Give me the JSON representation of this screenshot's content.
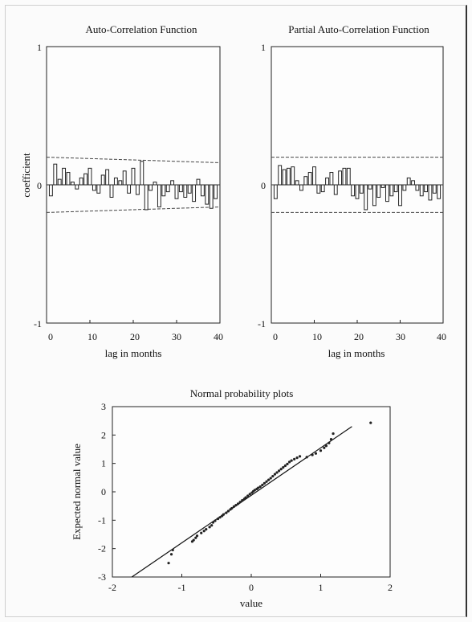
{
  "chart_data": [
    {
      "type": "bar",
      "title": "Auto-Correlation Function",
      "xlabel": "lag in months",
      "ylabel": "coefficient",
      "xlim": [
        0,
        40
      ],
      "ylim": [
        -1,
        1
      ],
      "x_ticks": [
        "0",
        "10",
        "20",
        "30",
        "40"
      ],
      "y_ticks": [
        "1",
        "0",
        "-1"
      ],
      "lags": [
        1,
        2,
        3,
        4,
        5,
        6,
        7,
        8,
        9,
        10,
        11,
        12,
        13,
        14,
        15,
        16,
        17,
        18,
        19,
        20,
        21,
        22,
        23,
        24,
        25,
        26,
        27,
        28,
        29,
        30,
        31,
        32,
        33,
        34,
        35,
        36,
        37,
        38,
        39
      ],
      "values": [
        -0.08,
        0.15,
        0.04,
        0.12,
        0.09,
        0.02,
        -0.03,
        0.05,
        0.08,
        0.12,
        -0.04,
        -0.06,
        0.07,
        0.11,
        -0.09,
        0.05,
        0.03,
        0.1,
        -0.06,
        0.12,
        -0.07,
        0.17,
        -0.18,
        -0.04,
        0.02,
        -0.16,
        -0.08,
        -0.05,
        0.03,
        -0.1,
        -0.05,
        -0.09,
        -0.06,
        -0.12,
        0.04,
        -0.08,
        -0.14,
        -0.17,
        -0.1
      ],
      "confidence_band": {
        "start": [
          0.2,
          -0.2
        ],
        "end": [
          0.16,
          -0.16
        ]
      }
    },
    {
      "type": "bar",
      "title": "Partial Auto-Correlation Function",
      "xlabel": "lag in months",
      "ylabel": "",
      "xlim": [
        0,
        40
      ],
      "ylim": [
        -1,
        1
      ],
      "x_ticks": [
        "0",
        "10",
        "20",
        "30",
        "40"
      ],
      "y_ticks": [
        "1",
        "0",
        "-1"
      ],
      "lags": [
        1,
        2,
        3,
        4,
        5,
        6,
        7,
        8,
        9,
        10,
        11,
        12,
        13,
        14,
        15,
        16,
        17,
        18,
        19,
        20,
        21,
        22,
        23,
        24,
        25,
        26,
        27,
        28,
        29,
        30,
        31,
        32,
        33,
        34,
        35,
        36,
        37,
        38,
        39
      ],
      "values": [
        -0.1,
        0.14,
        0.11,
        0.12,
        0.13,
        0.03,
        -0.04,
        0.06,
        0.09,
        0.13,
        -0.06,
        -0.05,
        0.05,
        0.09,
        -0.07,
        0.1,
        0.12,
        0.12,
        -0.08,
        -0.1,
        -0.06,
        -0.18,
        -0.03,
        -0.15,
        -0.09,
        -0.02,
        -0.12,
        -0.08,
        -0.05,
        -0.15,
        -0.04,
        0.05,
        0.03,
        -0.04,
        -0.08,
        -0.05,
        -0.11,
        -0.06,
        -0.1
      ],
      "confidence_band": {
        "start": [
          0.2,
          -0.2
        ],
        "end": [
          0.2,
          -0.2
        ]
      }
    },
    {
      "type": "scatter",
      "title": "Normal probability plots",
      "xlabel": "value",
      "ylabel": "Expected normal value",
      "xlim": [
        -2,
        2
      ],
      "ylim": [
        -3,
        3
      ],
      "x_ticks": [
        "-2",
        "-1",
        "0",
        "1",
        "2"
      ],
      "y_ticks": [
        "3",
        "2",
        "1",
        "0",
        "-1",
        "-2",
        "-3"
      ],
      "reference_line": [
        [
          -1.72,
          -3.0
        ],
        [
          1.45,
          2.3
        ]
      ],
      "points": [
        [
          -1.19,
          -2.51
        ],
        [
          -1.15,
          -2.2
        ],
        [
          -1.13,
          -2.05
        ],
        [
          -0.85,
          -1.75
        ],
        [
          -0.83,
          -1.7
        ],
        [
          -0.8,
          -1.62
        ],
        [
          -0.78,
          -1.55
        ],
        [
          -0.72,
          -1.45
        ],
        [
          -0.68,
          -1.38
        ],
        [
          -0.65,
          -1.32
        ],
        [
          -0.6,
          -1.24
        ],
        [
          -0.57,
          -1.18
        ],
        [
          -0.55,
          -1.08
        ],
        [
          -0.52,
          -1.02
        ],
        [
          -0.48,
          -0.95
        ],
        [
          -0.45,
          -0.9
        ],
        [
          -0.42,
          -0.85
        ],
        [
          -0.4,
          -0.8
        ],
        [
          -0.36,
          -0.74
        ],
        [
          -0.33,
          -0.68
        ],
        [
          -0.3,
          -0.62
        ],
        [
          -0.28,
          -0.58
        ],
        [
          -0.25,
          -0.52
        ],
        [
          -0.22,
          -0.47
        ],
        [
          -0.19,
          -0.42
        ],
        [
          -0.16,
          -0.36
        ],
        [
          -0.13,
          -0.3
        ],
        [
          -0.1,
          -0.25
        ],
        [
          -0.08,
          -0.2
        ],
        [
          -0.05,
          -0.14
        ],
        [
          -0.02,
          -0.08
        ],
        [
          0.01,
          -0.03
        ],
        [
          0.03,
          0.02
        ],
        [
          0.05,
          0.06
        ],
        [
          0.08,
          0.1
        ],
        [
          0.1,
          0.14
        ],
        [
          0.13,
          0.18
        ],
        [
          0.16,
          0.24
        ],
        [
          0.19,
          0.3
        ],
        [
          0.22,
          0.36
        ],
        [
          0.25,
          0.42
        ],
        [
          0.28,
          0.48
        ],
        [
          0.31,
          0.55
        ],
        [
          0.34,
          0.62
        ],
        [
          0.37,
          0.68
        ],
        [
          0.4,
          0.74
        ],
        [
          0.43,
          0.8
        ],
        [
          0.46,
          0.86
        ],
        [
          0.49,
          0.92
        ],
        [
          0.52,
          0.98
        ],
        [
          0.55,
          1.05
        ],
        [
          0.58,
          1.1
        ],
        [
          0.62,
          1.15
        ],
        [
          0.66,
          1.2
        ],
        [
          0.7,
          1.25
        ],
        [
          0.8,
          1.22
        ],
        [
          0.88,
          1.3
        ],
        [
          0.93,
          1.35
        ],
        [
          1.0,
          1.45
        ],
        [
          1.05,
          1.55
        ],
        [
          1.08,
          1.62
        ],
        [
          1.12,
          1.72
        ],
        [
          1.15,
          1.85
        ],
        [
          1.18,
          2.05
        ],
        [
          1.72,
          2.43
        ]
      ]
    }
  ]
}
